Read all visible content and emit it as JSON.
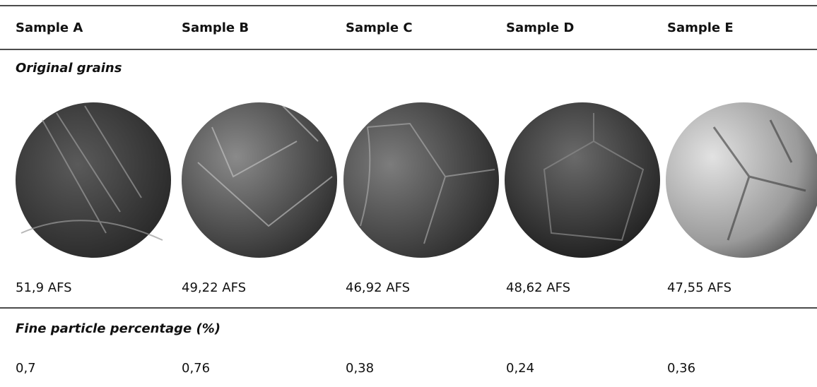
{
  "table": {
    "header": [
      "Sample A",
      "Sample B",
      "Sample C",
      "Sample D",
      "Sample E"
    ],
    "sections": [
      {
        "title": "Original grains",
        "rows": [
          [
            "51,9 AFS",
            "49,22 AFS",
            "46,92 AFS",
            "48,62 AFS",
            "47,55 AFS"
          ]
        ]
      },
      {
        "title": "Fine particle percentage (%)",
        "rows": [
          [
            "0,7",
            "0,76",
            "0,38",
            "0,24",
            "0,36"
          ]
        ]
      }
    ]
  }
}
